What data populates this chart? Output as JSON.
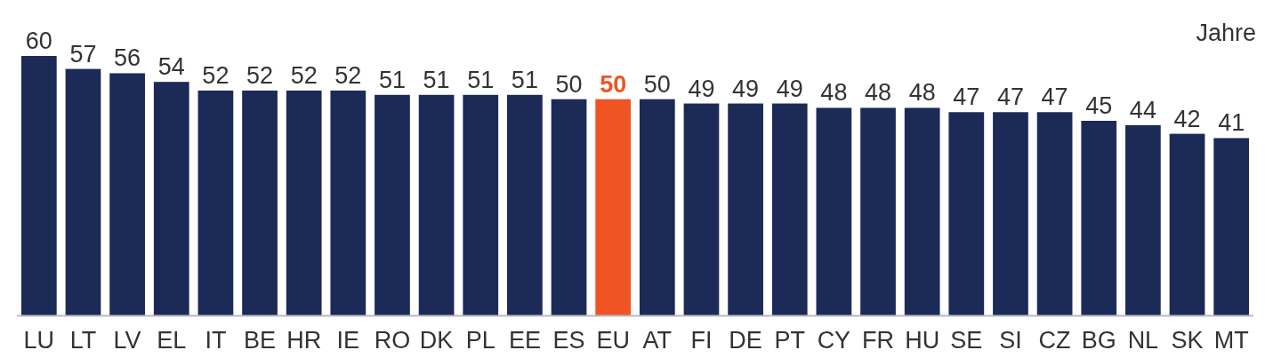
{
  "chart_data": {
    "type": "bar",
    "ylabel": "Jahre",
    "categories": [
      "LU",
      "LT",
      "LV",
      "EL",
      "IT",
      "BE",
      "HR",
      "IE",
      "RO",
      "DK",
      "PL",
      "EE",
      "ES",
      "EU",
      "AT",
      "FI",
      "DE",
      "PT",
      "CY",
      "FR",
      "HU",
      "SE",
      "SI",
      "CZ",
      "BG",
      "NL",
      "SK",
      "MT"
    ],
    "values": [
      60,
      57,
      56,
      54,
      52,
      52,
      52,
      52,
      51,
      51,
      51,
      51,
      50,
      50,
      50,
      49,
      49,
      49,
      48,
      48,
      48,
      47,
      47,
      47,
      45,
      44,
      42,
      41
    ],
    "colors": [
      "#1b2a57",
      "#1b2a57",
      "#1b2a57",
      "#1b2a57",
      "#1b2a57",
      "#1b2a57",
      "#1b2a57",
      "#1b2a57",
      "#1b2a57",
      "#1b2a57",
      "#1b2a57",
      "#1b2a57",
      "#1b2a57",
      "#f05423",
      "#1b2a57",
      "#1b2a57",
      "#1b2a57",
      "#1b2a57",
      "#1b2a57",
      "#1b2a57",
      "#1b2a57",
      "#1b2a57",
      "#1b2a57",
      "#1b2a57",
      "#1b2a57",
      "#1b2a57",
      "#1b2a57",
      "#1b2a57"
    ],
    "data_labels": true
  }
}
